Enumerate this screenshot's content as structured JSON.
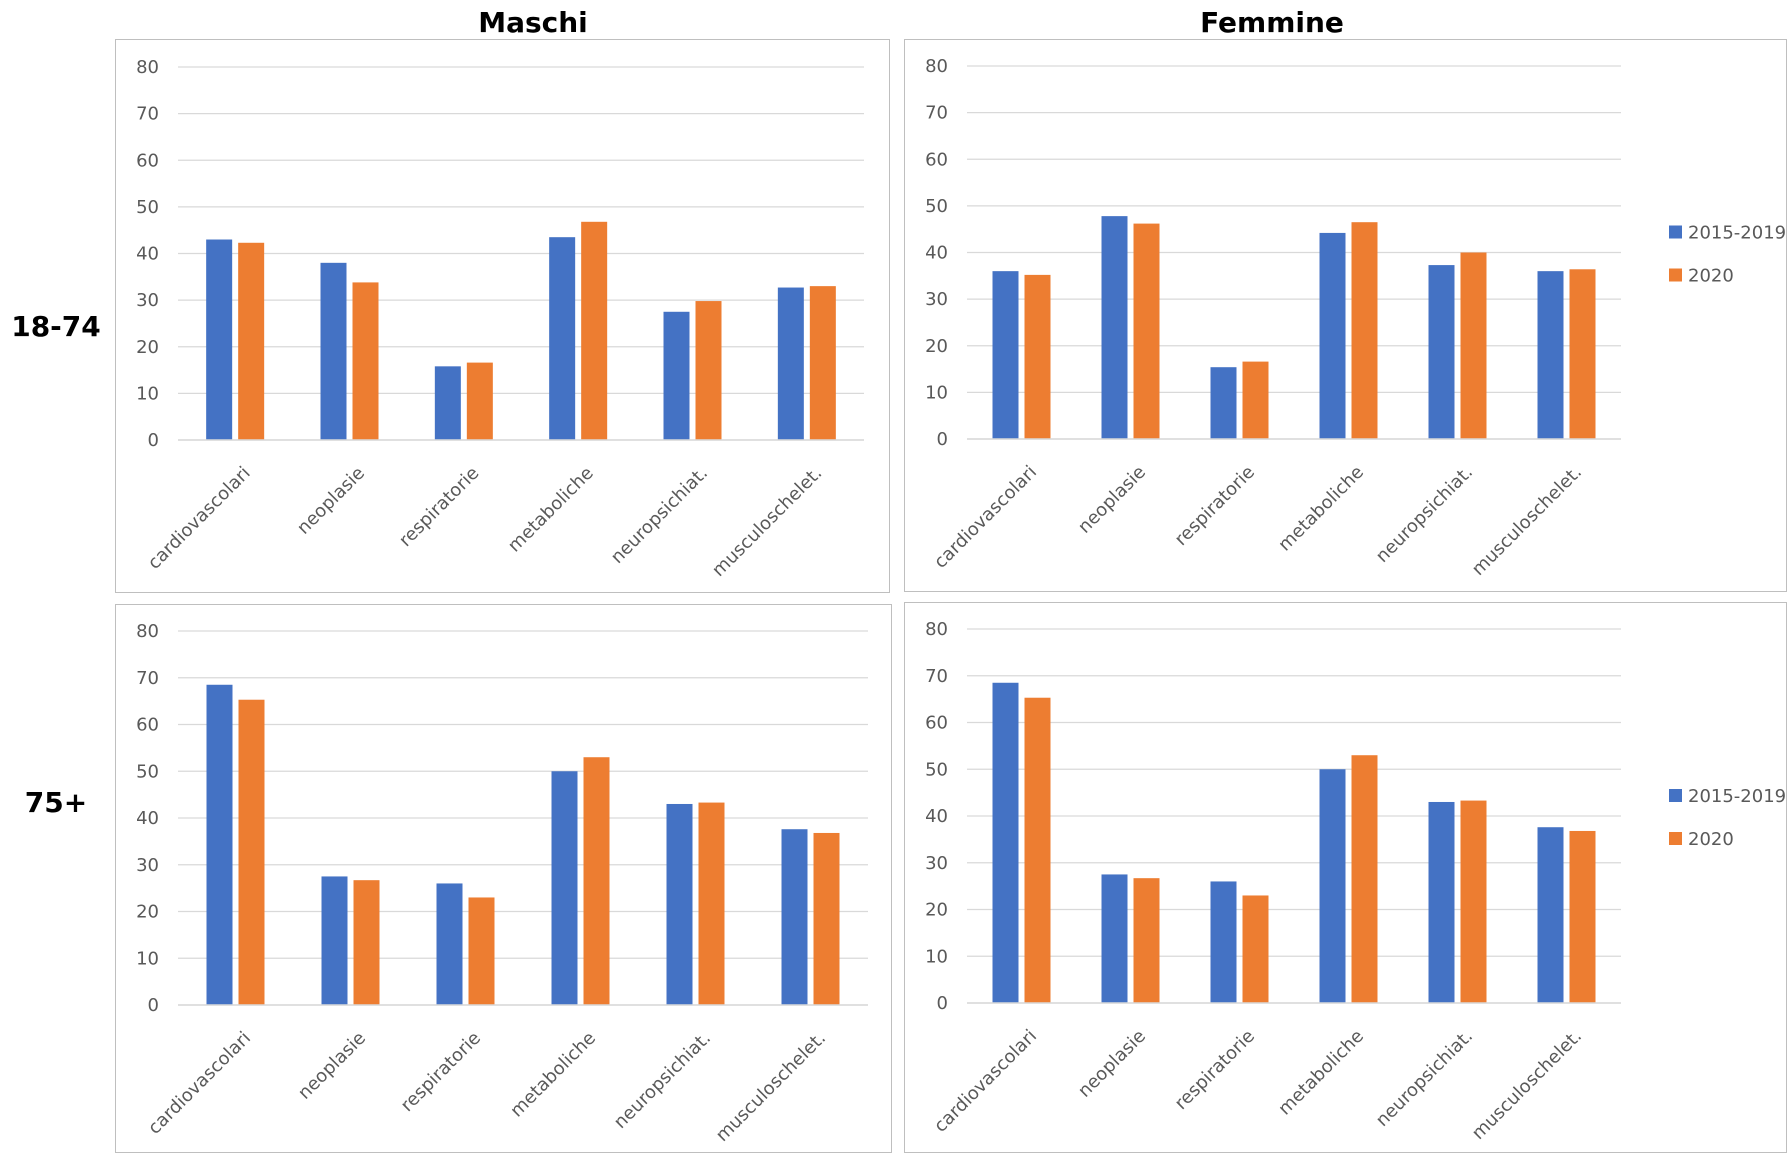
{
  "headers": {
    "col_left": "Maschi",
    "col_right": "Femmine",
    "row_top": "18-74",
    "row_bottom": "75+"
  },
  "colors": {
    "s1": "#4472c4",
    "s2": "#ed7d31"
  },
  "chart_data": [
    {
      "type": "bar",
      "panel": "18-74 Maschi",
      "categories": [
        "cardiovascolari",
        "neoplasie",
        "respiratorie",
        "metaboliche",
        "neuropsichiat.",
        "musculoschelet."
      ],
      "series": [
        {
          "name": "2015-2019",
          "values": [
            43,
            38,
            15.8,
            43.5,
            27.5,
            32.7
          ]
        },
        {
          "name": "2020",
          "values": [
            42.3,
            33.8,
            16.6,
            46.8,
            29.8,
            33
          ]
        }
      ],
      "ylim": [
        0,
        80
      ],
      "yticks": [
        0,
        10,
        20,
        30,
        40,
        50,
        60,
        70,
        80
      ],
      "grid": true,
      "legend": "none"
    },
    {
      "type": "bar",
      "panel": "18-74 Femmine",
      "categories": [
        "cardiovascolari",
        "neoplasie",
        "respiratorie",
        "metaboliche",
        "neuropsichiat.",
        "musculoschelet."
      ],
      "series": [
        {
          "name": "2015-2019",
          "values": [
            36,
            47.8,
            15.4,
            44.2,
            37.3,
            36
          ]
        },
        {
          "name": "2020",
          "values": [
            35.2,
            46.2,
            16.6,
            46.5,
            40,
            36.4
          ]
        }
      ],
      "ylim": [
        0,
        80
      ],
      "yticks": [
        0,
        10,
        20,
        30,
        40,
        50,
        60,
        70,
        80
      ],
      "grid": true,
      "legend": "right"
    },
    {
      "type": "bar",
      "panel": "75+ Maschi",
      "categories": [
        "cardiovascolari",
        "neoplasie",
        "respiratorie",
        "metaboliche",
        "neuropsichiat.",
        "musculoschelet."
      ],
      "series": [
        {
          "name": "2015-2019",
          "values": [
            68.5,
            27.5,
            26,
            50,
            43,
            37.6
          ]
        },
        {
          "name": "2020",
          "values": [
            65.3,
            26.7,
            23,
            53,
            43.3,
            36.8
          ]
        }
      ],
      "ylim": [
        0,
        80
      ],
      "yticks": [
        0,
        10,
        20,
        30,
        40,
        50,
        60,
        70,
        80
      ],
      "grid": true,
      "legend": "none"
    },
    {
      "type": "bar",
      "panel": "75+ Femmine",
      "categories": [
        "cardiovascolari",
        "neoplasie",
        "respiratorie",
        "metaboliche",
        "neuropsichiat.",
        "musculoschelet."
      ],
      "series": [
        {
          "name": "2015-2019",
          "values": [
            68.5,
            27.5,
            26,
            50,
            43,
            37.6
          ]
        },
        {
          "name": "2020",
          "values": [
            65.3,
            26.7,
            23,
            53,
            43.3,
            36.8
          ]
        }
      ],
      "ylim": [
        0,
        80
      ],
      "yticks": [
        0,
        10,
        20,
        30,
        40,
        50,
        60,
        70,
        80
      ],
      "grid": true,
      "legend": "right"
    }
  ]
}
